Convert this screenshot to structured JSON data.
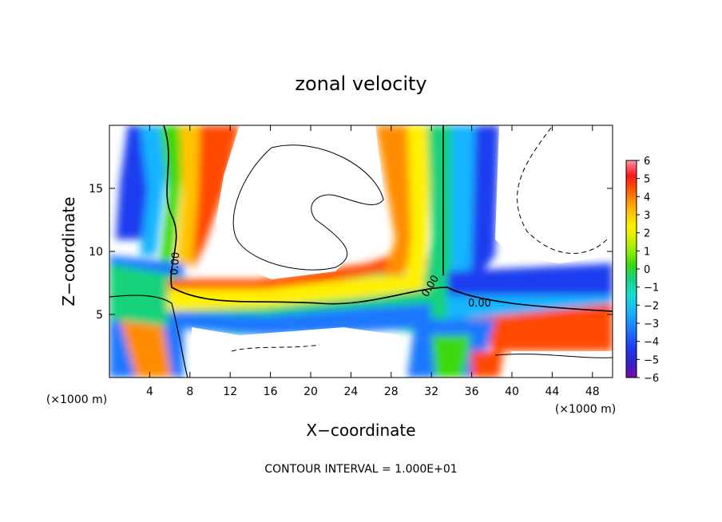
{
  "chart_data": {
    "type": "heatmap",
    "title": "zonal velocity",
    "xlabel": "X−coordinate",
    "ylabel": "Z−coordinate",
    "x_unit": "(×1000 m)",
    "y_unit": "(×1000 m)",
    "footer": "CONTOUR INTERVAL = 1.000E+01",
    "xlim": [
      0,
      50
    ],
    "ylim": [
      0,
      20
    ],
    "x_ticks": [
      4,
      8,
      12,
      16,
      20,
      24,
      28,
      32,
      36,
      40,
      44,
      48
    ],
    "y_ticks": [
      5,
      10,
      15
    ],
    "colorbar": {
      "range": [
        -6,
        6
      ],
      "ticks": [
        6,
        5,
        4,
        3,
        2,
        1,
        0,
        "−1",
        "−2",
        "−3",
        "−4",
        "−5",
        "−6"
      ],
      "colors": [
        "#7a0aa8",
        "#3a1ec8",
        "#1c3cf0",
        "#1e78ff",
        "#16b4ff",
        "#18dcd0",
        "#16d27a",
        "#3cd80e",
        "#8cec00",
        "#d4f000",
        "#fff000",
        "#ffc400",
        "#ff8c00",
        "#ff4800",
        "#ff1818",
        "#ff5a6a",
        "#ff98a0"
      ]
    },
    "contour_labels": [
      "0.00",
      "0.00",
      "0.00"
    ],
    "grid": false
  }
}
